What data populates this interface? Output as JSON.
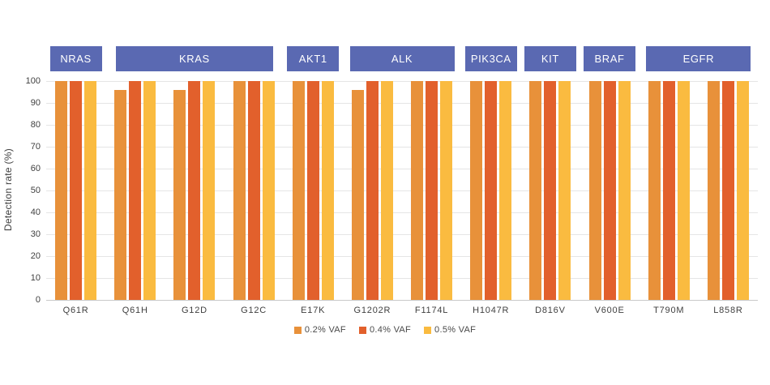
{
  "chart_data": {
    "type": "bar",
    "title": "",
    "ylabel": "Detection rate (%)",
    "xlabel": "",
    "ylim": [
      0,
      100
    ],
    "yticks": [
      0,
      10,
      20,
      30,
      40,
      50,
      60,
      70,
      80,
      90,
      100
    ],
    "grid": true,
    "legend_position": "bottom",
    "categories": [
      "Q61R",
      "Q61H",
      "G12D",
      "G12C",
      "E17K",
      "G1202R",
      "F1174L",
      "H1047R",
      "D816V",
      "V600E",
      "T790M",
      "L858R"
    ],
    "gene_groups": [
      {
        "label": "NRAS",
        "start": 0,
        "span": 1
      },
      {
        "label": "KRAS",
        "start": 1,
        "span": 3
      },
      {
        "label": "AKT1",
        "start": 4,
        "span": 1
      },
      {
        "label": "ALK",
        "start": 5,
        "span": 2
      },
      {
        "label": "PIK3CA",
        "start": 7,
        "span": 1
      },
      {
        "label": "KIT",
        "start": 8,
        "span": 1
      },
      {
        "label": "BRAF",
        "start": 9,
        "span": 1
      },
      {
        "label": "EGFR",
        "start": 10,
        "span": 2
      }
    ],
    "series": [
      {
        "name": "0.2% VAF",
        "color": "#E8913A",
        "values": [
          100,
          96,
          96,
          100,
          100,
          96,
          100,
          100,
          100,
          100,
          100,
          100
        ]
      },
      {
        "name": "0.4% VAF",
        "color": "#E2602C",
        "values": [
          100,
          100,
          100,
          100,
          100,
          100,
          100,
          100,
          100,
          100,
          100,
          100
        ]
      },
      {
        "name": "0.5% VAF",
        "color": "#FABB40",
        "values": [
          100,
          100,
          100,
          100,
          100,
          100,
          100,
          100,
          100,
          100,
          100,
          100
        ]
      }
    ]
  },
  "styles": {
    "gene_box_color": "#5A69B2",
    "gene_text_color": "#FFFFFF",
    "gridline_color": "#e5e5e5",
    "axis_line_color": "#c9c9c9",
    "tick_text_color": "#404040"
  }
}
